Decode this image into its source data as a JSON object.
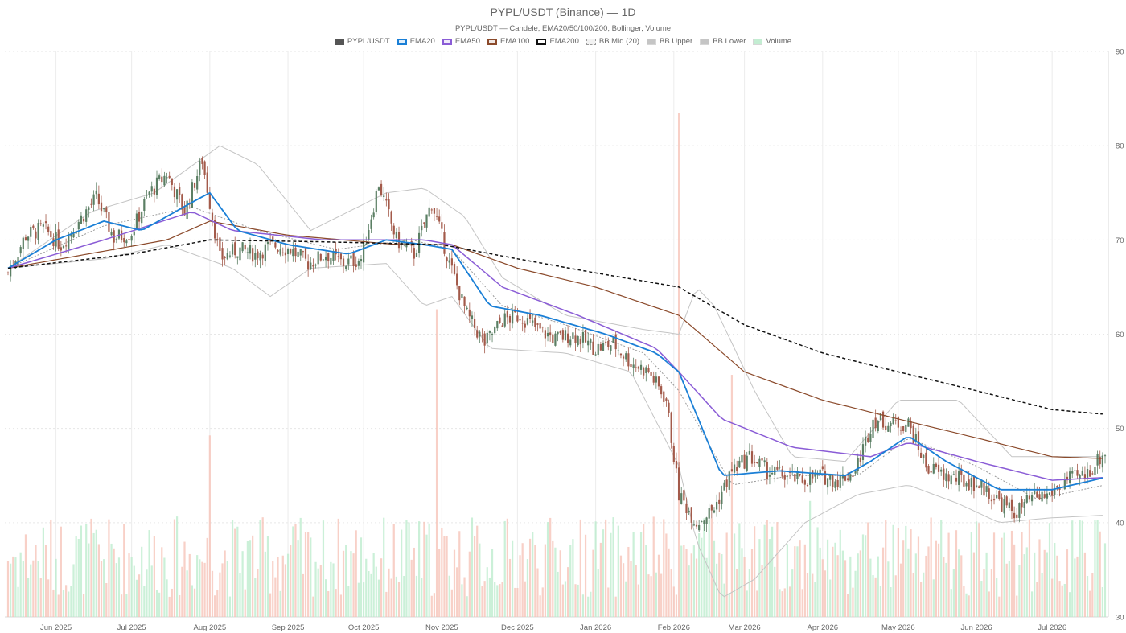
{
  "page": {
    "title": "PYPL/USDT (Binance) — 1D",
    "subtitle": "PYPL/USDT — Candele, EMA20/50/100/200, Bollinger, Volume"
  },
  "legend": [
    {
      "label": "PYPL/USDT",
      "color": "#555555",
      "style": "solid-fill"
    },
    {
      "label": "EMA20",
      "color": "#1a7fd6",
      "style": "outline"
    },
    {
      "label": "EMA50",
      "color": "#8a5cd6",
      "style": "outline"
    },
    {
      "label": "EMA100",
      "color": "#8b4a2b",
      "style": "outline"
    },
    {
      "label": "EMA200",
      "color": "#111111",
      "style": "dashed"
    },
    {
      "label": "BB Mid (20)",
      "color": "#999999",
      "style": "dotted"
    },
    {
      "label": "BB Upper",
      "color": "#bbbbbb",
      "style": "light"
    },
    {
      "label": "BB Lower",
      "color": "#bbbbbb",
      "style": "light"
    },
    {
      "label": "Volume",
      "color": "#b9ebcb",
      "style": "light"
    }
  ],
  "chart_data": {
    "type": "candlestick",
    "title": "PYPL/USDT (Binance) — 1D",
    "y_axis": {
      "position": "right",
      "range": [
        30,
        90
      ],
      "ticks": [
        "30",
        "40",
        "50",
        "60",
        "70",
        "80",
        "90"
      ]
    },
    "x_axis": {
      "ticks": [
        "Jun 2025",
        "Jul 2025",
        "Aug 2025",
        "Sep 2025",
        "Oct 2025",
        "Nov 2025",
        "Dec 2025",
        "Jan 2026",
        "Feb 2026",
        "Mar 2026",
        "Apr 2026",
        "May 2026",
        "Jun 2026",
        "Jul 2026"
      ]
    },
    "date_range": [
      "2025-05-13",
      "2026-07-22"
    ],
    "grid": true,
    "legend_position": "top-center",
    "colors": {
      "up": "#5b7f64",
      "down": "#a35a4a",
      "vol_up": "#b9ebcb",
      "vol_down": "#f5c0b4",
      "ema20": "#1a7fd6",
      "ema50": "#8a5cd6",
      "ema100": "#8b4a2b",
      "ema200": "#111111",
      "bb_mid": "#999999",
      "bb_band": "#c4c4c4"
    },
    "close_anchors": [
      [
        "2025-05-13",
        66.5
      ],
      [
        "2025-05-20",
        70.5
      ],
      [
        "2025-05-27",
        71.2
      ],
      [
        "2025-06-03",
        69.5
      ],
      [
        "2025-06-10",
        72.0
      ],
      [
        "2025-06-17",
        74.5
      ],
      [
        "2025-06-24",
        70.2
      ],
      [
        "2025-07-01",
        70.8
      ],
      [
        "2025-07-08",
        75.0
      ],
      [
        "2025-07-15",
        77.0
      ],
      [
        "2025-07-22",
        73.0
      ],
      [
        "2025-07-29",
        78.5
      ],
      [
        "2025-08-05",
        68.0
      ],
      [
        "2025-08-12",
        69.0
      ],
      [
        "2025-08-19",
        68.5
      ],
      [
        "2025-08-26",
        69.5
      ],
      [
        "2025-09-02",
        69.0
      ],
      [
        "2025-09-09",
        67.5
      ],
      [
        "2025-09-16",
        68.5
      ],
      [
        "2025-09-23",
        67.5
      ],
      [
        "2025-09-30",
        68.0
      ],
      [
        "2025-10-07",
        76.0
      ],
      [
        "2025-10-14",
        70.0
      ],
      [
        "2025-10-21",
        68.5
      ],
      [
        "2025-10-28",
        74.0
      ],
      [
        "2025-11-04",
        67.5
      ],
      [
        "2025-11-11",
        62.0
      ],
      [
        "2025-11-18",
        59.0
      ],
      [
        "2025-11-25",
        61.5
      ],
      [
        "2025-12-02",
        62.0
      ],
      [
        "2025-12-09",
        60.5
      ],
      [
        "2025-12-16",
        59.5
      ],
      [
        "2025-12-23",
        60.0
      ],
      [
        "2026-01-01",
        58.5
      ],
      [
        "2026-01-08",
        59.0
      ],
      [
        "2026-01-15",
        57.0
      ],
      [
        "2026-01-22",
        56.0
      ],
      [
        "2026-01-29",
        53.0
      ],
      [
        "2026-02-03",
        43.0
      ],
      [
        "2026-02-10",
        40.0
      ],
      [
        "2026-02-17",
        41.5
      ],
      [
        "2026-02-24",
        45.5
      ],
      [
        "2026-03-03",
        47.0
      ],
      [
        "2026-03-10",
        45.5
      ],
      [
        "2026-03-17",
        45.0
      ],
      [
        "2026-03-24",
        44.5
      ],
      [
        "2026-03-31",
        45.0
      ],
      [
        "2026-04-07",
        44.5
      ],
      [
        "2026-04-14",
        45.5
      ],
      [
        "2026-04-21",
        51.0
      ],
      [
        "2026-04-28",
        50.5
      ],
      [
        "2026-05-05",
        50.5
      ],
      [
        "2026-05-12",
        46.0
      ],
      [
        "2026-05-19",
        45.0
      ],
      [
        "2026-05-26",
        44.5
      ],
      [
        "2026-06-02",
        44.0
      ],
      [
        "2026-06-09",
        42.5
      ],
      [
        "2026-06-16",
        41.0
      ],
      [
        "2026-06-23",
        42.5
      ],
      [
        "2026-06-30",
        43.0
      ],
      [
        "2026-07-07",
        44.5
      ],
      [
        "2026-07-14",
        45.0
      ],
      [
        "2026-07-22",
        47.5
      ]
    ],
    "volume_scale": [
      0,
      100
    ],
    "volume_spikes": [
      [
        "2025-08-01",
        36
      ],
      [
        "2025-10-30",
        61
      ],
      [
        "2026-02-03",
        100
      ],
      [
        "2026-02-24",
        48
      ],
      [
        "2026-03-27",
        23
      ]
    ],
    "ema20_anchors": [
      [
        "2025-05-13",
        67.0
      ],
      [
        "2025-06-01",
        70.0
      ],
      [
        "2025-06-20",
        72.0
      ],
      [
        "2025-07-05",
        71.0
      ],
      [
        "2025-07-25",
        74.0
      ],
      [
        "2025-08-01",
        75.0
      ],
      [
        "2025-08-12",
        71.0
      ],
      [
        "2025-09-01",
        69.5
      ],
      [
        "2025-09-25",
        68.5
      ],
      [
        "2025-10-10",
        70.0
      ],
      [
        "2025-10-25",
        69.5
      ],
      [
        "2025-11-05",
        69.0
      ],
      [
        "2025-11-20",
        63.0
      ],
      [
        "2025-12-10",
        62.0
      ],
      [
        "2026-01-05",
        60.0
      ],
      [
        "2026-01-25",
        58.0
      ],
      [
        "2026-02-03",
        56.0
      ],
      [
        "2026-02-20",
        45.0
      ],
      [
        "2026-03-15",
        45.5
      ],
      [
        "2026-04-10",
        45.0
      ],
      [
        "2026-04-20",
        46.5
      ],
      [
        "2026-05-01",
        48.5
      ],
      [
        "2026-05-05",
        49.2
      ],
      [
        "2026-05-20",
        46.5
      ],
      [
        "2026-06-10",
        43.5
      ],
      [
        "2026-07-01",
        43.5
      ],
      [
        "2026-07-22",
        44.8
      ]
    ],
    "ema50_anchors": [
      [
        "2025-05-13",
        67.0
      ],
      [
        "2025-06-20",
        70.0
      ],
      [
        "2025-07-25",
        73.0
      ],
      [
        "2025-08-10",
        71.0
      ],
      [
        "2025-09-15",
        70.0
      ],
      [
        "2025-10-25",
        70.0
      ],
      [
        "2025-11-05",
        69.5
      ],
      [
        "2025-11-25",
        65.0
      ],
      [
        "2025-12-25",
        62.0
      ],
      [
        "2026-01-25",
        58.5
      ],
      [
        "2026-02-03",
        56.0
      ],
      [
        "2026-02-20",
        51.0
      ],
      [
        "2026-03-20",
        48.0
      ],
      [
        "2026-04-20",
        47.0
      ],
      [
        "2026-05-05",
        48.5
      ],
      [
        "2026-06-01",
        46.5
      ],
      [
        "2026-07-01",
        44.5
      ],
      [
        "2026-07-22",
        44.8
      ]
    ],
    "ema100_anchors": [
      [
        "2025-05-13",
        67.0
      ],
      [
        "2025-07-15",
        70.0
      ],
      [
        "2025-08-01",
        72.0
      ],
      [
        "2025-09-01",
        70.5
      ],
      [
        "2025-10-15",
        69.5
      ],
      [
        "2025-11-05",
        69.5
      ],
      [
        "2025-12-01",
        67.0
      ],
      [
        "2026-01-01",
        65.0
      ],
      [
        "2026-02-03",
        62.0
      ],
      [
        "2026-03-01",
        56.0
      ],
      [
        "2026-04-01",
        53.0
      ],
      [
        "2026-05-01",
        51.0
      ],
      [
        "2026-06-01",
        49.0
      ],
      [
        "2026-07-01",
        47.0
      ],
      [
        "2026-07-22",
        46.8
      ]
    ],
    "ema200_anchors": [
      [
        "2025-05-13",
        67.0
      ],
      [
        "2025-07-01",
        68.5
      ],
      [
        "2025-08-01",
        70.0
      ],
      [
        "2025-09-15",
        69.8
      ],
      [
        "2025-11-01",
        69.5
      ],
      [
        "2025-12-01",
        68.0
      ],
      [
        "2026-01-01",
        66.5
      ],
      [
        "2026-02-03",
        65.0
      ],
      [
        "2026-03-01",
        61.0
      ],
      [
        "2026-04-01",
        58.0
      ],
      [
        "2026-05-01",
        56.0
      ],
      [
        "2026-06-01",
        54.0
      ],
      [
        "2026-07-01",
        52.0
      ],
      [
        "2026-07-22",
        51.5
      ]
    ],
    "bb_upper_anchors": [
      [
        "2025-05-13",
        67.0
      ],
      [
        "2025-06-15",
        73.0
      ],
      [
        "2025-07-10",
        75.0
      ],
      [
        "2025-08-05",
        80.0
      ],
      [
        "2025-08-20",
        78.0
      ],
      [
        "2025-09-10",
        71.0
      ],
      [
        "2025-10-10",
        75.0
      ],
      [
        "2025-10-25",
        75.5
      ],
      [
        "2025-11-10",
        72.5
      ],
      [
        "2025-11-25",
        66.0
      ],
      [
        "2025-12-20",
        62.0
      ],
      [
        "2026-01-20",
        60.5
      ],
      [
        "2026-02-03",
        60.0
      ],
      [
        "2026-02-10",
        65.0
      ],
      [
        "2026-02-17",
        63.0
      ],
      [
        "2026-03-05",
        54.0
      ],
      [
        "2026-03-20",
        47.0
      ],
      [
        "2026-04-10",
        46.5
      ],
      [
        "2026-05-01",
        53.0
      ],
      [
        "2026-05-25",
        53.0
      ],
      [
        "2026-06-15",
        47.0
      ],
      [
        "2026-07-22",
        47.0
      ]
    ],
    "bb_mid_anchors": [
      [
        "2025-05-13",
        67.0
      ],
      [
        "2025-06-20",
        71.5
      ],
      [
        "2025-07-25",
        73.5
      ],
      [
        "2025-08-20",
        71.0
      ],
      [
        "2025-09-20",
        69.0
      ],
      [
        "2025-10-20",
        70.0
      ],
      [
        "2025-11-05",
        69.0
      ],
      [
        "2025-11-25",
        63.0
      ],
      [
        "2025-12-20",
        61.0
      ],
      [
        "2026-01-20",
        58.0
      ],
      [
        "2026-02-03",
        54.0
      ],
      [
        "2026-02-24",
        44.0
      ],
      [
        "2026-03-20",
        45.0
      ],
      [
        "2026-04-15",
        45.0
      ],
      [
        "2026-05-05",
        49.0
      ],
      [
        "2026-06-01",
        46.0
      ],
      [
        "2026-06-25",
        42.5
      ],
      [
        "2026-07-22",
        44.0
      ]
    ],
    "bb_lower_anchors": [
      [
        "2025-05-13",
        67.0
      ],
      [
        "2025-06-20",
        68.0
      ],
      [
        "2025-07-15",
        69.5
      ],
      [
        "2025-08-10",
        67.0
      ],
      [
        "2025-08-25",
        64.0
      ],
      [
        "2025-09-10",
        67.0
      ],
      [
        "2025-10-10",
        67.5
      ],
      [
        "2025-10-25",
        63.0
      ],
      [
        "2025-11-05",
        64.0
      ],
      [
        "2025-11-20",
        58.5
      ],
      [
        "2025-12-20",
        58.0
      ],
      [
        "2026-01-15",
        56.0
      ],
      [
        "2026-02-03",
        46.0
      ],
      [
        "2026-02-10",
        38.0
      ],
      [
        "2026-02-20",
        32.0
      ],
      [
        "2026-03-05",
        34.0
      ],
      [
        "2026-03-25",
        40.0
      ],
      [
        "2026-04-15",
        43.0
      ],
      [
        "2026-05-05",
        44.0
      ],
      [
        "2026-05-25",
        42.0
      ],
      [
        "2026-06-10",
        40.0
      ],
      [
        "2026-06-30",
        40.5
      ],
      [
        "2026-07-22",
        40.8
      ]
    ]
  }
}
